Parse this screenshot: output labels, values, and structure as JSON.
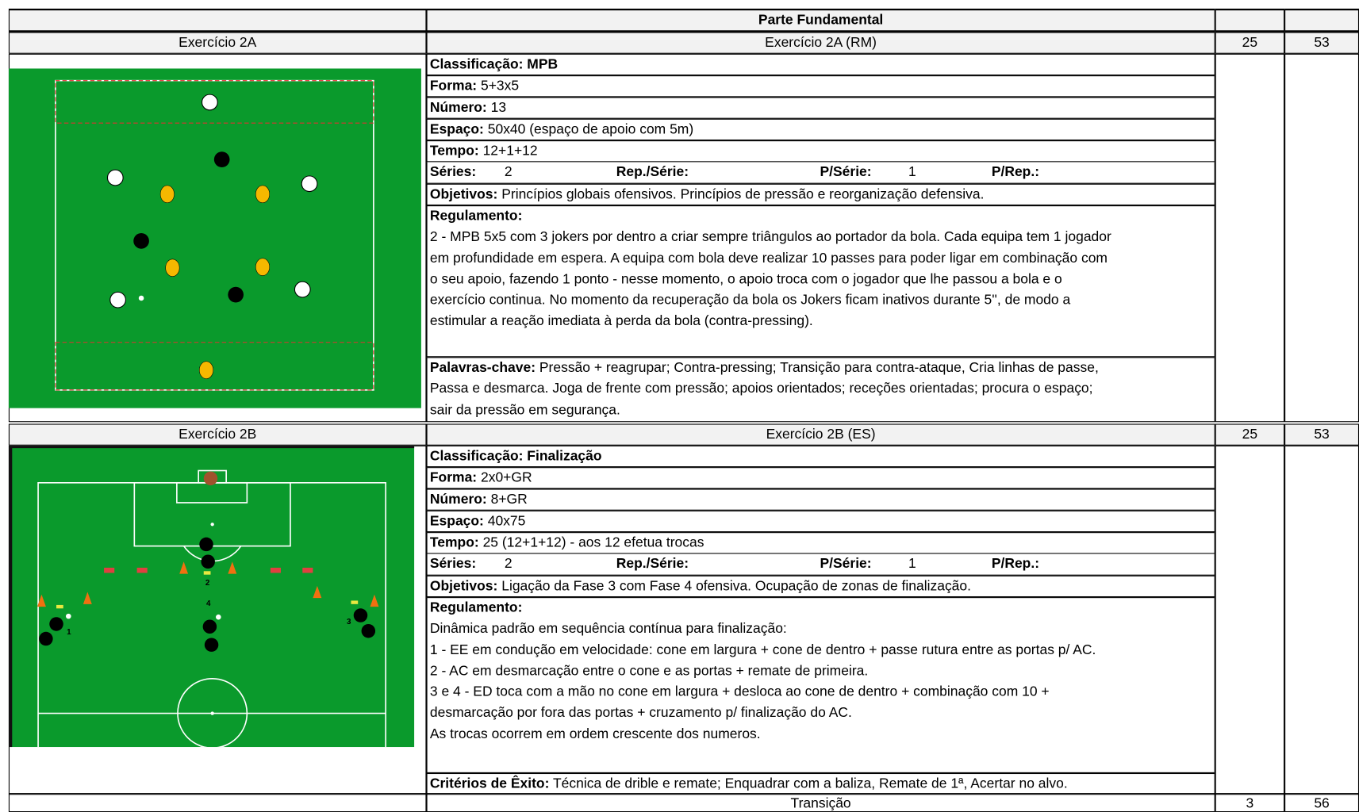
{
  "header": {
    "title": "Parte Fundamental"
  },
  "exercises": [
    {
      "left": "Exercício 2A",
      "title": "Exercício 2A (RM)",
      "c3": "25",
      "c4": "53",
      "fields": [
        {
          "label": "Classificação:",
          "value": "MPB"
        },
        {
          "label": "Forma:",
          "value": "5+3x5"
        },
        {
          "label": "Número:",
          "value": "13"
        },
        {
          "label": "Espaço:",
          "value": "50x40 (espaço de apoio com 5m)"
        },
        {
          "label": "Tempo:",
          "value": "12+1+12"
        }
      ],
      "series": {
        "series_label": "Séries:",
        "series": "2",
        "rep_label": "Rep./Série:",
        "p_serie_label": "P/Série:",
        "p_serie": "1",
        "p_rep_label": "P/Rep.:"
      },
      "objectives": {
        "label": "Objetivos:",
        "value": "Princípios globais ofensivos. Princípios de pressão e reorganização defensiva."
      },
      "rules": {
        "label": "Regulamento:",
        "lines": [
          "2 - MPB 5x5 com 3 jokers por dentro a criar sempre triângulos ao portador da bola. Cada equipa tem 1 jogador",
          "em profundidade em espera. A equipa com bola deve realizar 10 passes para poder ligar em combinação com",
          "o seu apoio, fazendo 1 ponto - nesse momento, o apoio troca com o jogador que lhe passou a bola e o",
          "exercício continua. No momento da recuperação da bola os Jokers ficam inativos durante 5'', de modo a",
          "estimular a reação imediata à perda da bola (contra-pressing)."
        ]
      },
      "closing": {
        "label": "Palavras-chave:",
        "lines": [
          "Pressão + reagrupar; Contra-pressing; Transição para contra-ataque, Cria linhas de passe,",
          "Passa e desmarca. Joga de frente com pressão; apoios orientados; receções orientadas; procura o espaço;",
          "sair da pressão em segurança."
        ]
      }
    },
    {
      "left": "Exercício 2B",
      "title": "Exercício 2B (ES)",
      "c3": "25",
      "c4": "53",
      "fields": [
        {
          "label": "Classificação:",
          "value": "Finalização"
        },
        {
          "label": "Forma:",
          "value": "2x0+GR"
        },
        {
          "label": "Número:",
          "value": "8+GR"
        },
        {
          "label": "Espaço:",
          "value": "40x75"
        },
        {
          "label": "Tempo:",
          "value": "25 (12+1+12) - aos 12 efetua trocas"
        }
      ],
      "series": {
        "series_label": "Séries:",
        "series": "2",
        "rep_label": "Rep./Série:",
        "p_serie_label": "P/Série:",
        "p_serie": "1",
        "p_rep_label": "P/Rep.:"
      },
      "objectives": {
        "label": "Objetivos:",
        "value": "Ligação da Fase 3 com Fase 4 ofensiva. Ocupação de zonas de finalização."
      },
      "rules": {
        "label": "Regulamento:",
        "lines": [
          "Dinâmica padrão em sequência contínua para finalização:",
          "1 - EE em condução em velocidade: cone em largura + cone de dentro + passe rutura entre as portas p/ AC.",
          "2 - AC em desmarcação entre o cone e as portas + remate de primeira.",
          "3 e 4 - ED toca com a mão no cone em largura + desloca ao cone de dentro + combinação com 10 +",
          "desmarcação por fora das portas + cruzamento p/ finalização do AC.",
          "As trocas ocorrem em ordem crescente dos numeros."
        ]
      },
      "closing": {
        "label": "Critérios de Êxito:",
        "lines": [
          "Técnica de drible e remate; Enquadrar com a baliza, Remate de 1ª, Acertar no alvo."
        ]
      },
      "diagram_labels": [
        "1",
        "2",
        "3",
        "4"
      ]
    }
  ],
  "footer": {
    "title": "Transição",
    "c3": "3",
    "c4": "56"
  }
}
